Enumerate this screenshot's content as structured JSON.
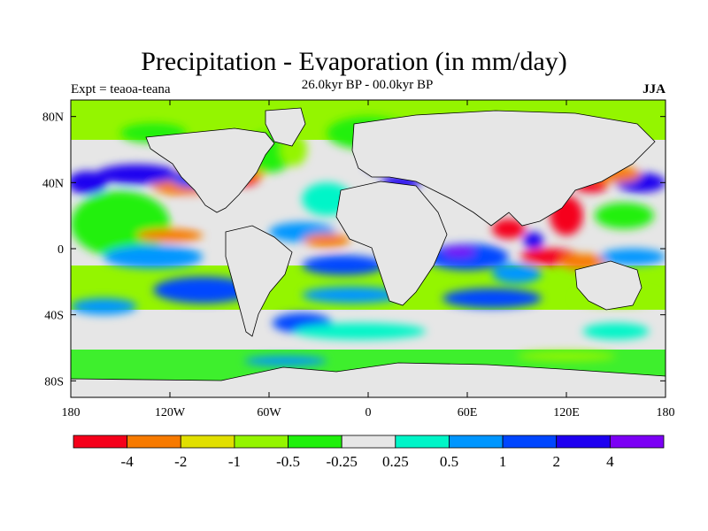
{
  "header": {
    "title": "Precipitation - Evaporation (in mm/day)",
    "subtitle": "26.0kyr BP - 00.0kyr BP",
    "left_label": "Expt = teaoa-teana",
    "right_label": "JJA"
  },
  "map": {
    "projection": "cylindrical equidistant",
    "lon_range": [
      -180,
      180
    ],
    "lat_range": [
      -90,
      90
    ],
    "x_ticks": [
      {
        "lon": -180,
        "label": "180"
      },
      {
        "lon": -120,
        "label": "120W"
      },
      {
        "lon": -60,
        "label": "60W"
      },
      {
        "lon": 0,
        "label": "0"
      },
      {
        "lon": 60,
        "label": "60E"
      },
      {
        "lon": 120,
        "label": "120E"
      },
      {
        "lon": 180,
        "label": "180"
      }
    ],
    "y_ticks": [
      {
        "lat": 80,
        "label": "80N"
      },
      {
        "lat": 40,
        "label": "40N"
      },
      {
        "lat": 0,
        "label": "0"
      },
      {
        "lat": -40,
        "label": "40S"
      },
      {
        "lat": -80,
        "label": "80S"
      }
    ],
    "background_color": "#e6e6e6",
    "coastline_color": "#000000"
  },
  "colorbar": {
    "colors": [
      "#f5001a",
      "#f77a00",
      "#e1df00",
      "#94f500",
      "#20f00c",
      "#e6e6e6",
      "#00f5c8",
      "#0096ff",
      "#0046ff",
      "#1e00f0",
      "#7c00f5"
    ],
    "labels": [
      "-4",
      "-2",
      "-1",
      "-0.5",
      "-0.25",
      "0.25",
      "0.5",
      "1",
      "2",
      "4"
    ]
  },
  "field_patches": [
    {
      "lon": -150,
      "lat": 15,
      "rx": 30,
      "ry": 20,
      "c": 4
    },
    {
      "lon": -110,
      "lat": 40,
      "rx": 22,
      "ry": 8,
      "c": 1
    },
    {
      "lon": -140,
      "lat": 45,
      "rx": 25,
      "ry": 6,
      "c": 9
    },
    {
      "lon": -170,
      "lat": 40,
      "rx": 12,
      "ry": 7,
      "c": 9
    },
    {
      "lon": -105,
      "lat": 42,
      "rx": 14,
      "ry": 5,
      "c": 8
    },
    {
      "lon": -100,
      "lat": 25,
      "rx": 14,
      "ry": 7,
      "c": 5
    },
    {
      "lon": -120,
      "lat": 8,
      "rx": 20,
      "ry": 4,
      "c": 1
    },
    {
      "lon": -130,
      "lat": -5,
      "rx": 30,
      "ry": 7,
      "c": 7
    },
    {
      "lon": -100,
      "lat": -25,
      "rx": 30,
      "ry": 8,
      "c": 8
    },
    {
      "lon": -160,
      "lat": -35,
      "rx": 20,
      "ry": 5,
      "c": 7
    },
    {
      "lon": -75,
      "lat": 44,
      "rx": 10,
      "ry": 6,
      "c": 0
    },
    {
      "lon": -70,
      "lat": 47,
      "rx": 8,
      "ry": 4,
      "c": 1
    },
    {
      "lon": -60,
      "lat": 58,
      "rx": 15,
      "ry": 12,
      "c": 4
    },
    {
      "lon": -45,
      "lat": 60,
      "rx": 8,
      "ry": 10,
      "c": 3
    },
    {
      "lon": -40,
      "lat": 10,
      "rx": 20,
      "ry": 6,
      "c": 7
    },
    {
      "lon": -25,
      "lat": 5,
      "rx": 14,
      "ry": 4,
      "c": 1
    },
    {
      "lon": -25,
      "lat": 30,
      "rx": 15,
      "ry": 10,
      "c": 6
    },
    {
      "lon": -15,
      "lat": -10,
      "rx": 25,
      "ry": 6,
      "c": 8
    },
    {
      "lon": -10,
      "lat": -28,
      "rx": 30,
      "ry": 5,
      "c": 7
    },
    {
      "lon": -40,
      "lat": -45,
      "rx": 18,
      "ry": 6,
      "c": 8
    },
    {
      "lon": -5,
      "lat": -50,
      "rx": 40,
      "ry": 5,
      "c": 6
    },
    {
      "lon": 10,
      "lat": 52,
      "rx": 12,
      "ry": 6,
      "c": 9
    },
    {
      "lon": 0,
      "lat": 70,
      "rx": 25,
      "ry": 10,
      "c": 4
    },
    {
      "lon": 30,
      "lat": 60,
      "rx": 12,
      "ry": 6,
      "c": 7
    },
    {
      "lon": 20,
      "lat": 40,
      "rx": 12,
      "ry": 4,
      "c": 9
    },
    {
      "lon": 60,
      "lat": -5,
      "rx": 25,
      "ry": 8,
      "c": 8
    },
    {
      "lon": 55,
      "lat": -2,
      "rx": 10,
      "ry": 3,
      "c": 10
    },
    {
      "lon": 75,
      "lat": -30,
      "rx": 30,
      "ry": 6,
      "c": 8
    },
    {
      "lon": 90,
      "lat": -15,
      "rx": 15,
      "ry": 6,
      "c": 7
    },
    {
      "lon": 85,
      "lat": 12,
      "rx": 10,
      "ry": 6,
      "c": 0
    },
    {
      "lon": 100,
      "lat": 5,
      "rx": 6,
      "ry": 5,
      "c": 9
    },
    {
      "lon": 110,
      "lat": -5,
      "rx": 18,
      "ry": 5,
      "c": 0
    },
    {
      "lon": 130,
      "lat": -8,
      "rx": 14,
      "ry": 5,
      "c": 1
    },
    {
      "lon": 120,
      "lat": 20,
      "rx": 10,
      "ry": 12,
      "c": 0
    },
    {
      "lon": 135,
      "lat": 38,
      "rx": 10,
      "ry": 4,
      "c": 0
    },
    {
      "lon": 155,
      "lat": 20,
      "rx": 18,
      "ry": 8,
      "c": 4
    },
    {
      "lon": 165,
      "lat": 40,
      "rx": 15,
      "ry": 6,
      "c": 9
    },
    {
      "lon": 150,
      "lat": 45,
      "rx": 15,
      "ry": 5,
      "c": 1
    },
    {
      "lon": 160,
      "lat": -5,
      "rx": 20,
      "ry": 5,
      "c": 7
    },
    {
      "lon": 150,
      "lat": -30,
      "rx": 25,
      "ry": 5,
      "c": 3
    },
    {
      "lon": 150,
      "lat": -50,
      "rx": 20,
      "ry": 5,
      "c": 6
    },
    {
      "lon": 100,
      "lat": 60,
      "rx": 15,
      "ry": 8,
      "c": 3
    },
    {
      "lon": -130,
      "lat": 70,
      "rx": 20,
      "ry": 6,
      "c": 4
    },
    {
      "lon": -100,
      "lat": 58,
      "rx": 10,
      "ry": 4,
      "c": 8
    },
    {
      "lon": -50,
      "lat": -68,
      "rx": 25,
      "ry": 3,
      "c": 7
    },
    {
      "lon": 120,
      "lat": -65,
      "rx": 30,
      "ry": 3,
      "c": 3
    }
  ]
}
